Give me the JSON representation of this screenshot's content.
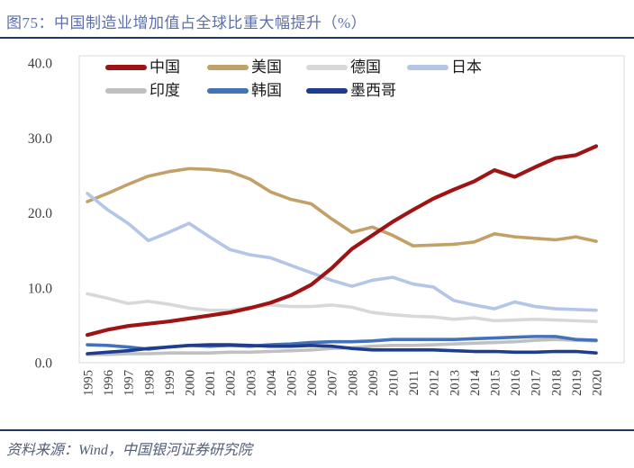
{
  "header": {
    "title": "图75：中国制造业增加值占全球比重大幅提升（%）"
  },
  "footer": {
    "source": "资料来源：Wind，中国银河证券研究院"
  },
  "chart_data": {
    "type": "line",
    "title": "中国制造业增加值占全球比重大幅提升（%）",
    "x": [
      1995,
      1996,
      1997,
      1998,
      1999,
      2000,
      2001,
      2002,
      2003,
      2004,
      2005,
      2006,
      2007,
      2008,
      2009,
      2010,
      2011,
      2012,
      2013,
      2014,
      2015,
      2016,
      2017,
      2018,
      2019,
      2020
    ],
    "series": [
      {
        "name": "中国",
        "key": "china",
        "color": "#9E1414",
        "values": [
          3.7,
          4.4,
          4.9,
          5.2,
          5.5,
          5.9,
          6.3,
          6.7,
          7.3,
          8.0,
          9.0,
          10.4,
          12.6,
          15.2,
          17.0,
          18.8,
          20.4,
          21.9,
          23.1,
          24.2,
          25.7,
          24.8,
          26.1,
          27.3,
          27.7,
          28.9
        ]
      },
      {
        "name": "美国",
        "key": "usa",
        "color": "#C2A169",
        "values": [
          21.5,
          22.6,
          23.8,
          24.9,
          25.5,
          25.9,
          25.8,
          25.5,
          24.5,
          22.8,
          21.8,
          21.2,
          19.2,
          17.4,
          18.1,
          17.0,
          15.6,
          15.7,
          15.8,
          16.1,
          17.2,
          16.8,
          16.6,
          16.4,
          16.8,
          16.2
        ]
      },
      {
        "name": "德国",
        "key": "germany",
        "color": "#D8D8D8",
        "values": [
          9.2,
          8.6,
          7.9,
          8.2,
          7.8,
          7.3,
          7.0,
          7.0,
          7.4,
          7.7,
          7.5,
          7.5,
          7.7,
          7.4,
          6.7,
          6.4,
          6.2,
          6.1,
          5.8,
          6.0,
          5.6,
          5.7,
          5.8,
          5.7,
          5.6,
          5.5
        ]
      },
      {
        "name": "日本",
        "key": "japan",
        "color": "#B3C6E7",
        "values": [
          22.6,
          20.4,
          18.6,
          16.3,
          17.4,
          18.6,
          16.8,
          15.1,
          14.4,
          14.0,
          13.0,
          12.0,
          11.0,
          10.2,
          11.0,
          11.4,
          10.5,
          10.1,
          8.3,
          7.7,
          7.2,
          8.1,
          7.5,
          7.2,
          7.1,
          7.0
        ]
      },
      {
        "name": "印度",
        "key": "india",
        "color": "#C0C0C0",
        "values": [
          1.1,
          1.1,
          1.2,
          1.2,
          1.3,
          1.3,
          1.3,
          1.4,
          1.4,
          1.5,
          1.6,
          1.7,
          1.9,
          2.0,
          2.2,
          2.3,
          2.3,
          2.4,
          2.5,
          2.6,
          2.7,
          2.8,
          3.0,
          3.1,
          3.0,
          2.9
        ]
      },
      {
        "name": "韩国",
        "key": "korea",
        "color": "#4472B8",
        "values": [
          2.4,
          2.3,
          2.1,
          1.8,
          2.1,
          2.3,
          2.2,
          2.3,
          2.2,
          2.4,
          2.5,
          2.7,
          2.8,
          2.8,
          2.9,
          3.1,
          3.1,
          3.1,
          3.1,
          3.2,
          3.3,
          3.4,
          3.5,
          3.5,
          3.1,
          3.0
        ]
      },
      {
        "name": "墨西哥",
        "key": "mexico",
        "color": "#1F3D8F",
        "values": [
          1.2,
          1.4,
          1.6,
          1.9,
          2.1,
          2.3,
          2.4,
          2.4,
          2.3,
          2.2,
          2.2,
          2.3,
          2.2,
          1.9,
          1.7,
          1.7,
          1.7,
          1.7,
          1.6,
          1.5,
          1.5,
          1.4,
          1.4,
          1.5,
          1.5,
          1.3
        ]
      }
    ],
    "ylim": [
      0,
      40
    ],
    "yticks": [
      "40.0",
      "30.0",
      "20.0",
      "10.0",
      "0.0"
    ],
    "xlabel": "",
    "ylabel": "",
    "grid": false,
    "legend_position": "top-inside"
  }
}
